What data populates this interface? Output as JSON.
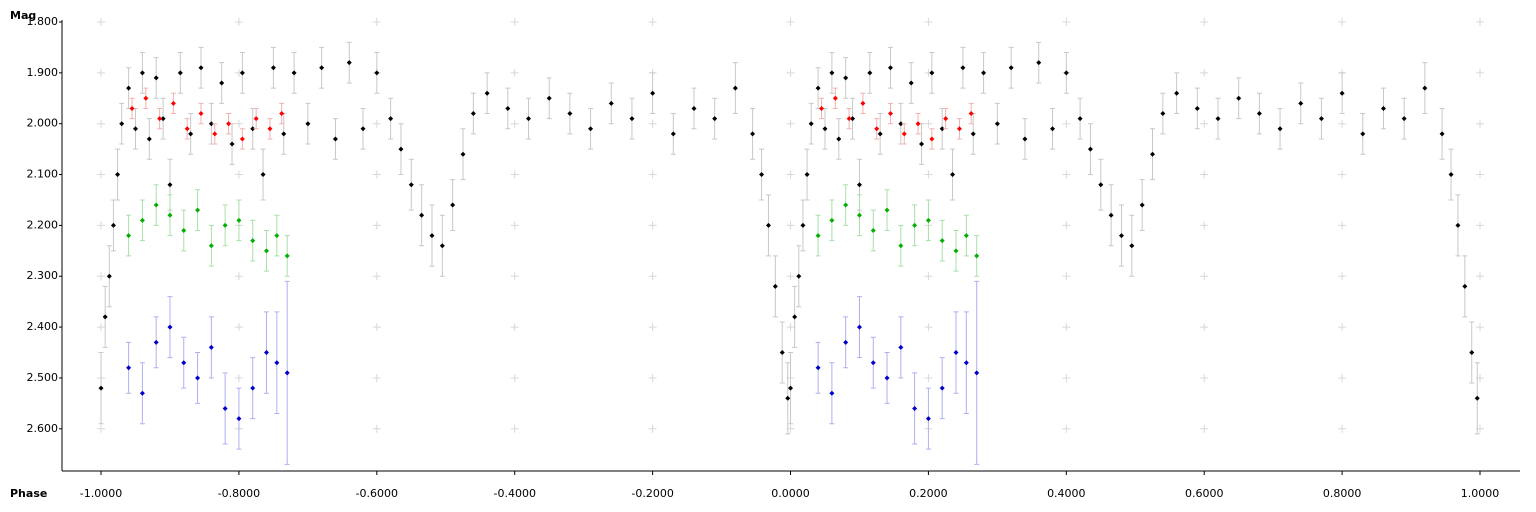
{
  "chart_data": {
    "type": "scatter",
    "y_label": "Mag",
    "x_label": "Phase",
    "xlim": [
      -1.0566,
      1.058
    ],
    "ylim": [
      1.8,
      2.683
    ],
    "y_inverted": true,
    "grid": true,
    "xticks": [
      {
        "value": -1,
        "label": "-1.0000"
      },
      {
        "value": -0.8,
        "label": "-0.8000"
      },
      {
        "value": -0.6,
        "label": "-0.6000"
      },
      {
        "value": -0.4,
        "label": "-0.4000"
      },
      {
        "value": -0.2,
        "label": "-0.2000"
      },
      {
        "value": 0,
        "label": "0.0000"
      },
      {
        "value": 0.2,
        "label": "0.2000"
      },
      {
        "value": 0.4,
        "label": "0.4000"
      },
      {
        "value": 0.6,
        "label": "0.6000"
      },
      {
        "value": 0.8,
        "label": "0.8000"
      },
      {
        "value": 1,
        "label": "1.0000"
      }
    ],
    "yticks": [
      {
        "value": 1.8,
        "label": "1.800"
      },
      {
        "value": 1.9,
        "label": "1.900"
      },
      {
        "value": 2.0,
        "label": "2.000"
      },
      {
        "value": 2.1,
        "label": "2.100"
      },
      {
        "value": 2.2,
        "label": "2.200"
      },
      {
        "value": 2.3,
        "label": "2.300"
      },
      {
        "value": 2.4,
        "label": "2.400"
      },
      {
        "value": 2.5,
        "label": "2.500"
      },
      {
        "value": 2.6,
        "label": "2.600"
      }
    ],
    "series": [
      {
        "color": "#000000",
        "error_color": "#c8c8c8",
        "x": [
          -1.0,
          -0.994,
          -0.988,
          -0.982,
          -0.976,
          -0.97,
          -0.96,
          -0.95,
          -0.94,
          -0.93,
          -0.92,
          -0.91,
          -0.9,
          -0.885,
          -0.87,
          -0.855,
          -0.84,
          -0.825,
          -0.81,
          -0.795,
          -0.78,
          -0.765,
          -0.75,
          -0.735,
          -0.72,
          -0.7,
          -0.68,
          -0.66,
          -0.64,
          -0.62,
          -0.6,
          -0.58,
          -0.565,
          -0.55,
          -0.535,
          -0.52,
          -0.505,
          -0.49,
          -0.475,
          -0.46,
          -0.44,
          -0.41,
          -0.38,
          -0.35,
          -0.32,
          -0.29,
          -0.26,
          -0.23,
          -0.2,
          -0.17,
          -0.14,
          -0.11,
          -0.08,
          -0.055,
          -0.042,
          -0.032,
          -0.022,
          -0.012,
          -0.004
        ],
        "values": [
          2.52,
          2.38,
          2.3,
          2.2,
          2.1,
          2.0,
          1.93,
          2.01,
          1.9,
          2.03,
          1.91,
          1.99,
          2.12,
          1.9,
          2.02,
          1.89,
          2.0,
          1.92,
          2.04,
          1.9,
          2.01,
          2.1,
          1.89,
          2.02,
          1.9,
          2.0,
          1.89,
          2.03,
          1.88,
          2.01,
          1.9,
          1.99,
          2.05,
          2.12,
          2.18,
          2.22,
          2.24,
          2.16,
          2.06,
          1.98,
          1.94,
          1.97,
          1.99,
          1.95,
          1.98,
          2.01,
          1.96,
          1.99,
          1.94,
          2.02,
          1.97,
          1.99,
          1.93,
          2.02,
          2.1,
          2.2,
          2.32,
          2.45,
          2.54
        ],
        "errors": [
          0.07,
          0.06,
          0.06,
          0.05,
          0.05,
          0.04,
          0.04,
          0.04,
          0.04,
          0.04,
          0.04,
          0.04,
          0.05,
          0.04,
          0.04,
          0.04,
          0.04,
          0.04,
          0.04,
          0.04,
          0.04,
          0.05,
          0.04,
          0.04,
          0.04,
          0.04,
          0.04,
          0.04,
          0.04,
          0.04,
          0.04,
          0.04,
          0.05,
          0.05,
          0.06,
          0.06,
          0.06,
          0.05,
          0.05,
          0.04,
          0.04,
          0.04,
          0.04,
          0.04,
          0.04,
          0.04,
          0.04,
          0.04,
          0.04,
          0.04,
          0.04,
          0.04,
          0.05,
          0.05,
          0.05,
          0.06,
          0.06,
          0.06,
          0.07
        ]
      },
      {
        "color": "#000000",
        "error_color": "#c8c8c8",
        "x": [
          0.0,
          0.006,
          0.012,
          0.018,
          0.024,
          0.03,
          0.04,
          0.05,
          0.06,
          0.07,
          0.08,
          0.09,
          0.1,
          0.115,
          0.13,
          0.145,
          0.16,
          0.175,
          0.19,
          0.205,
          0.22,
          0.235,
          0.25,
          0.265,
          0.28,
          0.3,
          0.32,
          0.34,
          0.36,
          0.38,
          0.4,
          0.42,
          0.435,
          0.45,
          0.465,
          0.48,
          0.495,
          0.51,
          0.525,
          0.54,
          0.56,
          0.59,
          0.62,
          0.65,
          0.68,
          0.71,
          0.74,
          0.77,
          0.8,
          0.83,
          0.86,
          0.89,
          0.92,
          0.945,
          0.958,
          0.968,
          0.978,
          0.988,
          0.996
        ],
        "values": [
          2.52,
          2.38,
          2.3,
          2.2,
          2.1,
          2.0,
          1.93,
          2.01,
          1.9,
          2.03,
          1.91,
          1.99,
          2.12,
          1.9,
          2.02,
          1.89,
          2.0,
          1.92,
          2.04,
          1.9,
          2.01,
          2.1,
          1.89,
          2.02,
          1.9,
          2.0,
          1.89,
          2.03,
          1.88,
          2.01,
          1.9,
          1.99,
          2.05,
          2.12,
          2.18,
          2.22,
          2.24,
          2.16,
          2.06,
          1.98,
          1.94,
          1.97,
          1.99,
          1.95,
          1.98,
          2.01,
          1.96,
          1.99,
          1.94,
          2.02,
          1.97,
          1.99,
          1.93,
          2.02,
          2.1,
          2.2,
          2.32,
          2.45,
          2.54
        ],
        "errors": [
          0.07,
          0.06,
          0.06,
          0.05,
          0.05,
          0.04,
          0.04,
          0.04,
          0.04,
          0.04,
          0.04,
          0.04,
          0.05,
          0.04,
          0.04,
          0.04,
          0.04,
          0.04,
          0.04,
          0.04,
          0.04,
          0.05,
          0.04,
          0.04,
          0.04,
          0.04,
          0.04,
          0.04,
          0.04,
          0.04,
          0.04,
          0.04,
          0.05,
          0.05,
          0.06,
          0.06,
          0.06,
          0.05,
          0.05,
          0.04,
          0.04,
          0.04,
          0.04,
          0.04,
          0.04,
          0.04,
          0.04,
          0.04,
          0.04,
          0.04,
          0.04,
          0.04,
          0.05,
          0.05,
          0.05,
          0.06,
          0.06,
          0.06,
          0.07
        ]
      },
      {
        "color": "#ff0000",
        "error_color": "#f4b0b0",
        "x": [
          -0.955,
          -0.935,
          -0.915,
          -0.895,
          -0.875,
          -0.855,
          -0.835,
          -0.815,
          -0.795,
          -0.775,
          -0.755,
          -0.738
        ],
        "values": [
          1.97,
          1.95,
          1.99,
          1.96,
          2.01,
          1.98,
          2.02,
          2.0,
          2.03,
          1.99,
          2.01,
          1.98
        ],
        "errors": [
          0.02,
          0.02,
          0.02,
          0.02,
          0.02,
          0.02,
          0.02,
          0.02,
          0.02,
          0.02,
          0.02,
          0.02
        ]
      },
      {
        "color": "#ff0000",
        "error_color": "#f4b0b0",
        "x": [
          0.045,
          0.065,
          0.085,
          0.105,
          0.125,
          0.145,
          0.165,
          0.185,
          0.205,
          0.225,
          0.245,
          0.262
        ],
        "values": [
          1.97,
          1.95,
          1.99,
          1.96,
          2.01,
          1.98,
          2.02,
          2.0,
          2.03,
          1.99,
          2.01,
          1.98
        ],
        "errors": [
          0.02,
          0.02,
          0.02,
          0.02,
          0.02,
          0.02,
          0.02,
          0.02,
          0.02,
          0.02,
          0.02,
          0.02
        ]
      },
      {
        "color": "#00b000",
        "error_color": "#a8e0a8",
        "x": [
          -0.96,
          -0.94,
          -0.92,
          -0.9,
          -0.88,
          -0.86,
          -0.84,
          -0.82,
          -0.8,
          -0.78,
          -0.76,
          -0.745,
          -0.73
        ],
        "values": [
          2.22,
          2.19,
          2.16,
          2.18,
          2.21,
          2.17,
          2.24,
          2.2,
          2.19,
          2.23,
          2.25,
          2.22,
          2.26
        ],
        "errors": [
          0.04,
          0.04,
          0.04,
          0.04,
          0.04,
          0.04,
          0.04,
          0.04,
          0.04,
          0.04,
          0.04,
          0.04,
          0.04
        ]
      },
      {
        "color": "#00b000",
        "error_color": "#a8e0a8",
        "x": [
          0.04,
          0.06,
          0.08,
          0.1,
          0.12,
          0.14,
          0.16,
          0.18,
          0.2,
          0.22,
          0.24,
          0.255,
          0.27
        ],
        "values": [
          2.22,
          2.19,
          2.16,
          2.18,
          2.21,
          2.17,
          2.24,
          2.2,
          2.19,
          2.23,
          2.25,
          2.22,
          2.26
        ],
        "errors": [
          0.04,
          0.04,
          0.04,
          0.04,
          0.04,
          0.04,
          0.04,
          0.04,
          0.04,
          0.04,
          0.04,
          0.04,
          0.04
        ]
      },
      {
        "color": "#0000cc",
        "error_color": "#b0b0f0",
        "x": [
          -0.96,
          -0.94,
          -0.92,
          -0.9,
          -0.88,
          -0.86,
          -0.84,
          -0.82,
          -0.8,
          -0.78,
          -0.76,
          -0.745,
          -0.73
        ],
        "values": [
          2.48,
          2.53,
          2.43,
          2.4,
          2.47,
          2.5,
          2.44,
          2.56,
          2.58,
          2.52,
          2.45,
          2.47,
          2.49
        ],
        "errors": [
          0.05,
          0.06,
          0.05,
          0.06,
          0.05,
          0.05,
          0.06,
          0.07,
          0.06,
          0.06,
          0.08,
          0.1,
          0.18
        ]
      },
      {
        "color": "#0000cc",
        "error_color": "#b0b0f0",
        "x": [
          0.04,
          0.06,
          0.08,
          0.1,
          0.12,
          0.14,
          0.16,
          0.18,
          0.2,
          0.22,
          0.24,
          0.255,
          0.27
        ],
        "values": [
          2.48,
          2.53,
          2.43,
          2.4,
          2.47,
          2.5,
          2.44,
          2.56,
          2.58,
          2.52,
          2.45,
          2.47,
          2.49
        ],
        "errors": [
          0.05,
          0.06,
          0.05,
          0.06,
          0.05,
          0.05,
          0.06,
          0.07,
          0.06,
          0.06,
          0.08,
          0.1,
          0.18
        ]
      }
    ]
  }
}
